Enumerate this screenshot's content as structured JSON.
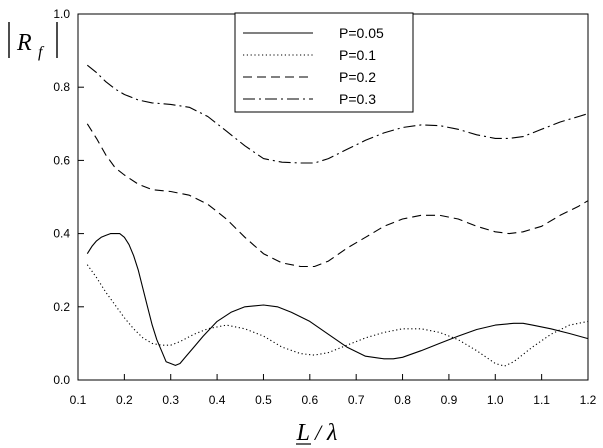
{
  "chart_data": {
    "type": "line",
    "title": "",
    "xlabel": "L / λ",
    "xlabel_parts": {
      "num": "L",
      "sep": "/",
      "den": "λ"
    },
    "ylabel": "|R_f|",
    "ylabel_parts": {
      "symbol": "R",
      "subscript": "f"
    },
    "xlim": [
      0.1,
      1.2
    ],
    "ylim": [
      0.0,
      1.0
    ],
    "xticks": [
      "0.1",
      "0.2",
      "0.3",
      "0.4",
      "0.5",
      "0.6",
      "0.7",
      "0.8",
      "0.9",
      "1.0",
      "1.1",
      "1.2"
    ],
    "yticks": [
      "0.0",
      "0.2",
      "0.4",
      "0.6",
      "0.8",
      "1.0"
    ],
    "grid": false,
    "legend_position": "top-center",
    "series": [
      {
        "name": "P=0.05",
        "style": "solid",
        "x": [
          0.12,
          0.13,
          0.14,
          0.15,
          0.16,
          0.17,
          0.18,
          0.19,
          0.2,
          0.21,
          0.22,
          0.23,
          0.24,
          0.25,
          0.26,
          0.27,
          0.28,
          0.29,
          0.3,
          0.31,
          0.32,
          0.33,
          0.35,
          0.37,
          0.4,
          0.43,
          0.46,
          0.5,
          0.53,
          0.56,
          0.6,
          0.64,
          0.68,
          0.72,
          0.76,
          0.78,
          0.8,
          0.84,
          0.88,
          0.92,
          0.96,
          1.0,
          1.04,
          1.06,
          1.08,
          1.12,
          1.16,
          1.2
        ],
        "y": [
          0.345,
          0.365,
          0.38,
          0.39,
          0.395,
          0.4,
          0.4,
          0.4,
          0.39,
          0.37,
          0.34,
          0.3,
          0.25,
          0.2,
          0.15,
          0.11,
          0.08,
          0.05,
          0.045,
          0.04,
          0.045,
          0.06,
          0.09,
          0.12,
          0.16,
          0.185,
          0.2,
          0.205,
          0.2,
          0.185,
          0.16,
          0.125,
          0.09,
          0.065,
          0.058,
          0.058,
          0.062,
          0.08,
          0.1,
          0.12,
          0.138,
          0.15,
          0.155,
          0.155,
          0.15,
          0.14,
          0.127,
          0.113
        ]
      },
      {
        "name": "P=0.1",
        "style": "dotted",
        "x": [
          0.12,
          0.14,
          0.16,
          0.18,
          0.2,
          0.22,
          0.24,
          0.26,
          0.28,
          0.3,
          0.32,
          0.35,
          0.38,
          0.42,
          0.46,
          0.5,
          0.54,
          0.58,
          0.61,
          0.64,
          0.68,
          0.72,
          0.76,
          0.8,
          0.84,
          0.88,
          0.92,
          0.96,
          1.0,
          1.02,
          1.04,
          1.08,
          1.12,
          1.16,
          1.2
        ],
        "y": [
          0.315,
          0.28,
          0.24,
          0.205,
          0.17,
          0.14,
          0.115,
          0.1,
          0.095,
          0.095,
          0.105,
          0.125,
          0.14,
          0.15,
          0.14,
          0.12,
          0.09,
          0.072,
          0.068,
          0.075,
          0.095,
          0.115,
          0.13,
          0.14,
          0.14,
          0.13,
          0.11,
          0.08,
          0.045,
          0.038,
          0.05,
          0.09,
          0.125,
          0.15,
          0.16
        ]
      },
      {
        "name": "P=0.2",
        "style": "dashed",
        "x": [
          0.12,
          0.14,
          0.16,
          0.18,
          0.2,
          0.23,
          0.26,
          0.3,
          0.34,
          0.38,
          0.42,
          0.46,
          0.5,
          0.54,
          0.58,
          0.61,
          0.64,
          0.68,
          0.72,
          0.76,
          0.8,
          0.84,
          0.88,
          0.92,
          0.96,
          1.0,
          1.03,
          1.06,
          1.1,
          1.14,
          1.18,
          1.2
        ],
        "y": [
          0.7,
          0.66,
          0.615,
          0.58,
          0.56,
          0.535,
          0.52,
          0.515,
          0.505,
          0.48,
          0.44,
          0.39,
          0.345,
          0.32,
          0.31,
          0.31,
          0.325,
          0.36,
          0.39,
          0.42,
          0.44,
          0.45,
          0.45,
          0.44,
          0.42,
          0.405,
          0.4,
          0.405,
          0.42,
          0.45,
          0.475,
          0.49
        ]
      },
      {
        "name": "P=0.3",
        "style": "dashdot",
        "x": [
          0.12,
          0.14,
          0.16,
          0.18,
          0.2,
          0.23,
          0.26,
          0.3,
          0.34,
          0.38,
          0.42,
          0.46,
          0.5,
          0.54,
          0.58,
          0.61,
          0.64,
          0.68,
          0.72,
          0.76,
          0.8,
          0.84,
          0.88,
          0.92,
          0.96,
          1.0,
          1.03,
          1.06,
          1.1,
          1.14,
          1.18,
          1.2
        ],
        "y": [
          0.86,
          0.84,
          0.815,
          0.795,
          0.78,
          0.765,
          0.757,
          0.753,
          0.745,
          0.72,
          0.68,
          0.64,
          0.605,
          0.595,
          0.593,
          0.593,
          0.605,
          0.63,
          0.655,
          0.675,
          0.69,
          0.697,
          0.695,
          0.685,
          0.67,
          0.66,
          0.66,
          0.665,
          0.685,
          0.705,
          0.72,
          0.728
        ]
      }
    ]
  }
}
